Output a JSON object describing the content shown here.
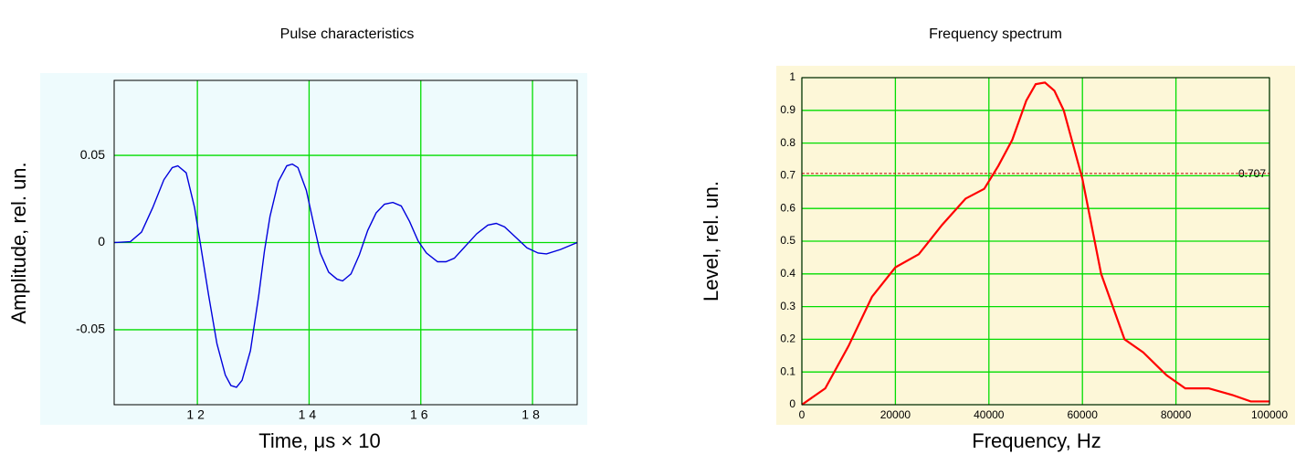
{
  "chart_data": [
    {
      "type": "line",
      "title": "Pulse characteristics",
      "xlabel": "Time, μs × 10",
      "ylabel": "Amplitude, rel. un.",
      "x": [
        10.51,
        10.8,
        11.0,
        11.2,
        11.4,
        11.55,
        11.65,
        11.8,
        11.95,
        12.05,
        12.2,
        12.35,
        12.5,
        12.6,
        12.7,
        12.8,
        12.95,
        13.1,
        13.2,
        13.3,
        13.45,
        13.6,
        13.7,
        13.8,
        13.95,
        14.1,
        14.2,
        14.35,
        14.5,
        14.6,
        14.75,
        14.9,
        15.05,
        15.2,
        15.35,
        15.5,
        15.65,
        15.8,
        15.95,
        16.1,
        16.3,
        16.45,
        16.6,
        16.8,
        17.0,
        17.2,
        17.35,
        17.5,
        17.7,
        17.9,
        18.1,
        18.25,
        18.5,
        18.8
      ],
      "values": [
        0,
        0.0005,
        0.006,
        0.02,
        0.036,
        0.043,
        0.044,
        0.04,
        0.02,
        0,
        -0.03,
        -0.058,
        -0.076,
        -0.082,
        -0.083,
        -0.079,
        -0.062,
        -0.03,
        -0.005,
        0.015,
        0.035,
        0.044,
        0.045,
        0.043,
        0.03,
        0.008,
        -0.006,
        -0.017,
        -0.021,
        -0.022,
        -0.018,
        -0.007,
        0.007,
        0.017,
        0.022,
        0.023,
        0.021,
        0.012,
        0.001,
        -0.006,
        -0.011,
        -0.011,
        -0.009,
        -0.002,
        0.005,
        0.01,
        0.011,
        0.009,
        0.003,
        -0.003,
        -0.006,
        -0.0065,
        -0.004,
        0
      ],
      "color": "#0000dd",
      "xlim": [
        10.51,
        18.8
      ],
      "xticks": [
        12,
        14,
        16,
        18
      ],
      "ylim": [
        -0.093,
        0.093
      ],
      "yticks": [
        -0.05,
        0,
        0.05
      ],
      "grid": true,
      "grid_color": "#00dd00",
      "background": "#eefbfd"
    },
    {
      "type": "line",
      "title": "Frequency spectrum",
      "xlabel": "Frequency, Hz",
      "ylabel": "Level, rel. un.",
      "x": [
        0,
        5000,
        10000,
        15000,
        20000,
        25000,
        30000,
        35000,
        39000,
        42000,
        45000,
        48000,
        50000,
        52000,
        54000,
        56000,
        60000,
        64000,
        69000,
        73000,
        78000,
        82000,
        87000,
        92000,
        96000,
        100000
      ],
      "values": [
        0,
        0.05,
        0.18,
        0.33,
        0.42,
        0.46,
        0.55,
        0.63,
        0.66,
        0.73,
        0.81,
        0.93,
        0.98,
        0.985,
        0.96,
        0.9,
        0.69,
        0.4,
        0.2,
        0.16,
        0.09,
        0.05,
        0.05,
        0.03,
        0.01,
        0.01
      ],
      "color": "#ff0000",
      "xlim": [
        0,
        100000
      ],
      "xticks": [
        0,
        20000,
        40000,
        60000,
        80000,
        100000
      ],
      "ylim": [
        0,
        1
      ],
      "yticks": [
        0,
        0.1,
        0.2,
        0.3,
        0.4,
        0.5,
        0.6,
        0.7,
        0.8,
        0.9,
        1
      ],
      "reference_line": 0.707,
      "reference_color": "#c00000",
      "grid": true,
      "grid_color": "#00dd00",
      "background": "#fdf7d8"
    }
  ]
}
